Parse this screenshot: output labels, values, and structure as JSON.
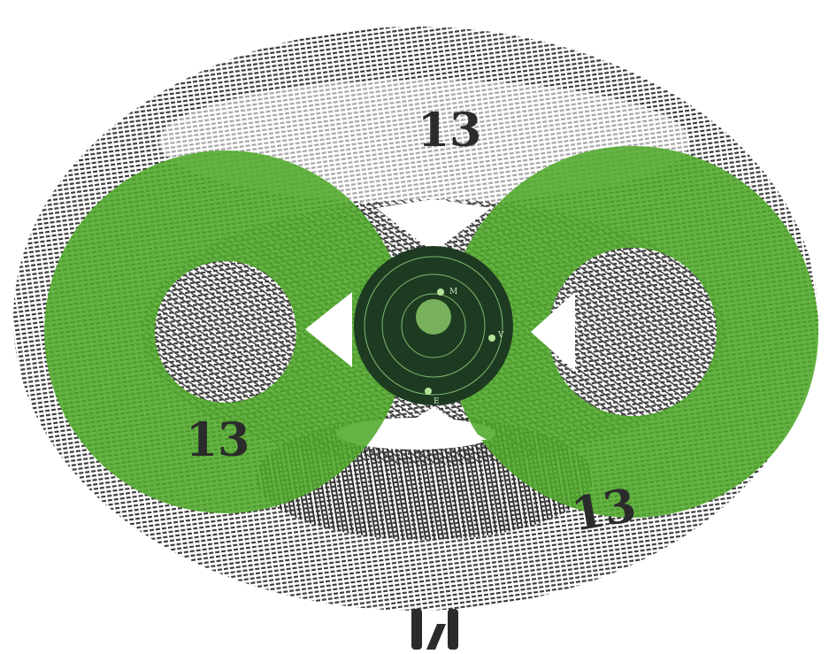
{
  "labels": {
    "top": "13",
    "left": "13",
    "right": "13"
  },
  "planets": [
    "M",
    "V",
    "E"
  ]
}
